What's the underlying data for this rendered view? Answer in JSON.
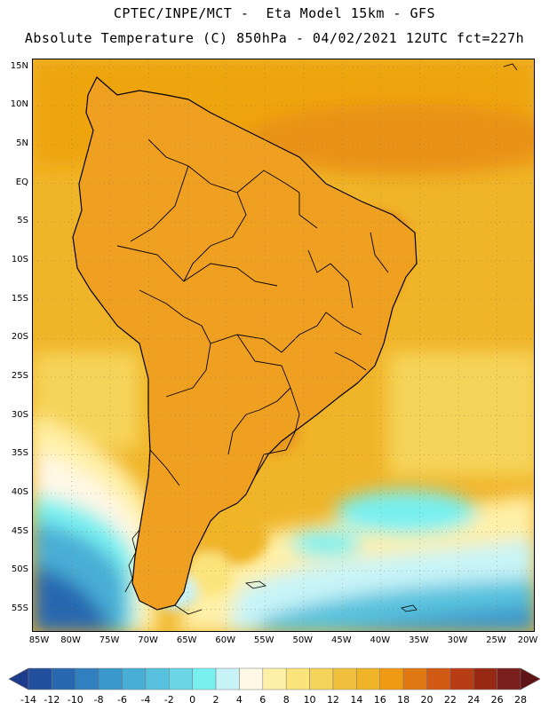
{
  "header": {
    "line1": "CPTEC/INPE/MCT -  Eta Model 15km - GFS",
    "line2": "Absolute Temperature (C) 850hPa - 04/02/2021 12UTC fct=227h"
  },
  "map": {
    "projection": "cylindrical",
    "lon_range": [
      -85,
      -20
    ],
    "lat_range": [
      -58,
      16
    ],
    "lat_labels": [
      "15N",
      "10N",
      "5N",
      "EQ",
      "5S",
      "10S",
      "15S",
      "20S",
      "25S",
      "30S",
      "35S",
      "40S",
      "45S",
      "50S",
      "55S"
    ],
    "lat_values": [
      15,
      10,
      5,
      0,
      -5,
      -10,
      -15,
      -20,
      -25,
      -30,
      -35,
      -40,
      -45,
      -50,
      -55
    ],
    "lon_labels": [
      "85W",
      "80W",
      "75W",
      "70W",
      "65W",
      "60W",
      "55W",
      "50W",
      "45W",
      "40W",
      "35W",
      "30W",
      "25W",
      "20W"
    ],
    "lon_values": [
      -85,
      -80,
      -75,
      -70,
      -65,
      -60,
      -55,
      -50,
      -45,
      -40,
      -35,
      -30,
      -25,
      -20
    ],
    "gridlines": "dotted",
    "field_description_colors": {
      "ocean_warm": "#f0b400",
      "land_hot": "#e08a1a",
      "land_very_hot": "#c8501e",
      "cold_south": "#3ea8d6"
    }
  },
  "colorbar": {
    "labels": [
      "-14",
      "-12",
      "-10",
      "-8",
      "-6",
      "-4",
      "-2",
      "0",
      "2",
      "4",
      "6",
      "8",
      "10",
      "12",
      "14",
      "16",
      "18",
      "20",
      "22",
      "24",
      "26",
      "28"
    ],
    "colors": [
      "#1e3c8c",
      "#23509e",
      "#2868b0",
      "#3080c0",
      "#3a98cc",
      "#48aed6",
      "#58c2de",
      "#6cd6e6",
      "#78f0f0",
      "#c8f4f8",
      "#fff8e6",
      "#fff0a8",
      "#fbe47c",
      "#f6d45a",
      "#f0c03c",
      "#f0b428",
      "#f09a14",
      "#e07814",
      "#d05a14",
      "#b83c14",
      "#962814",
      "#7a1e1e",
      "#5e1414"
    ]
  }
}
